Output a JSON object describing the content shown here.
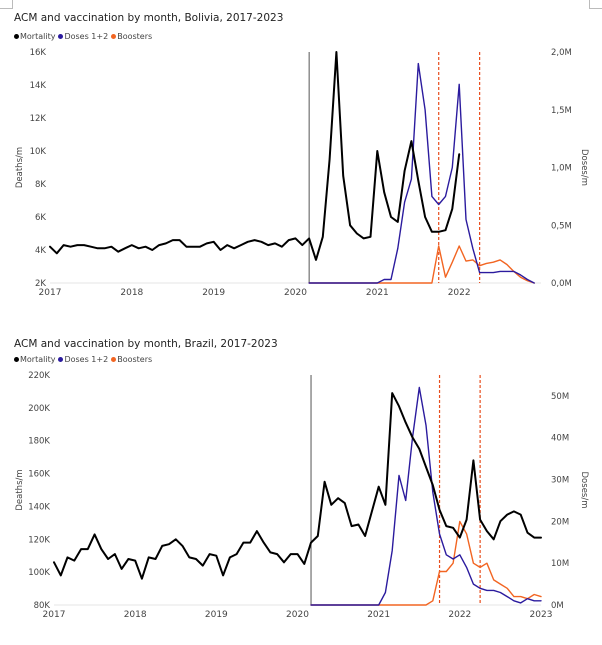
{
  "chart_data": [
    {
      "type": "line",
      "title": "ACM and vaccination by month, Bolivia, 2017-2023",
      "ylabel": "Deaths/m",
      "y2label": "Doses/m",
      "ylim": [
        2000,
        16000
      ],
      "y2lim": [
        0,
        2000000
      ],
      "xlim": [
        "2017-01",
        "2023-01"
      ],
      "yticks": [
        2000,
        4000,
        6000,
        8000,
        10000,
        12000,
        14000,
        16000
      ],
      "ytick_labels": [
        "2K",
        "4K",
        "6K",
        "8K",
        "10K",
        "12K",
        "14K",
        "16K"
      ],
      "y2ticks": [
        0,
        500000,
        1000000,
        1500000,
        2000000
      ],
      "y2tick_labels": [
        "0,0M",
        "0,5M",
        "1,0M",
        "1,5M",
        "2,0M"
      ],
      "xticks": [
        "2017-01",
        "2018-01",
        "2019-01",
        "2020-01",
        "2021-01",
        "2022-01"
      ],
      "xtick_labels": [
        "2017",
        "2018",
        "2019",
        "2020",
        "2021",
        "2022"
      ],
      "legend": [
        "Mortality",
        "Doses 1+2",
        "Boosters"
      ],
      "legend_position": "top-left",
      "colors": {
        "mortality": "#000000",
        "doses": "#2b1b9e",
        "boosters": "#f26522",
        "marker": "#555555",
        "vline": "#e84d1c"
      },
      "marker_line": "2020-03",
      "boosters_start_line": "2021-10",
      "boosters_peak_line": "2022-04",
      "series": [
        {
          "name": "Mortality",
          "axis": "left",
          "x": [
            "2017-01",
            "2017-02",
            "2017-03",
            "2017-04",
            "2017-05",
            "2017-06",
            "2017-07",
            "2017-08",
            "2017-09",
            "2017-10",
            "2017-11",
            "2017-12",
            "2018-01",
            "2018-02",
            "2018-03",
            "2018-04",
            "2018-05",
            "2018-06",
            "2018-07",
            "2018-08",
            "2018-09",
            "2018-10",
            "2018-11",
            "2018-12",
            "2019-01",
            "2019-02",
            "2019-03",
            "2019-04",
            "2019-05",
            "2019-06",
            "2019-07",
            "2019-08",
            "2019-09",
            "2019-10",
            "2019-11",
            "2019-12",
            "2020-01",
            "2020-02",
            "2020-03",
            "2020-04",
            "2020-05",
            "2020-06",
            "2020-07",
            "2020-08",
            "2020-09",
            "2020-10",
            "2020-11",
            "2020-12",
            "2021-01",
            "2021-02",
            "2021-03",
            "2021-04",
            "2021-05",
            "2021-06",
            "2021-07",
            "2021-08",
            "2021-09",
            "2021-10",
            "2021-11",
            "2021-12",
            "2022-01"
          ],
          "y": [
            4200,
            3800,
            4300,
            4200,
            4300,
            4300,
            4200,
            4100,
            4100,
            4200,
            3900,
            4100,
            4300,
            4100,
            4200,
            4000,
            4300,
            4400,
            4600,
            4600,
            4200,
            4200,
            4200,
            4400,
            4500,
            4000,
            4300,
            4100,
            4300,
            4500,
            4600,
            4500,
            4300,
            4400,
            4200,
            4600,
            4700,
            4300,
            4700,
            3400,
            4800,
            9500,
            16000,
            8500,
            5500,
            5000,
            4700,
            4800,
            10000,
            7500,
            6000,
            5700,
            8800,
            10600,
            8200,
            6000,
            5100,
            5100,
            5200,
            6500,
            9800
          ]
        },
        {
          "name": "Doses 1+2",
          "axis": "right",
          "x": [
            "2020-03",
            "2020-04",
            "2020-05",
            "2020-06",
            "2020-07",
            "2020-08",
            "2020-09",
            "2020-10",
            "2020-11",
            "2020-12",
            "2021-01",
            "2021-02",
            "2021-03",
            "2021-04",
            "2021-05",
            "2021-06",
            "2021-07",
            "2021-08",
            "2021-09",
            "2021-10",
            "2021-11",
            "2021-12",
            "2022-01",
            "2022-02",
            "2022-03",
            "2022-04",
            "2022-05",
            "2022-06",
            "2022-07",
            "2022-08",
            "2022-09",
            "2022-10",
            "2022-11",
            "2022-12"
          ],
          "y": [
            0,
            0,
            0,
            0,
            0,
            0,
            0,
            0,
            0,
            0,
            0,
            30000,
            30000,
            300000,
            700000,
            900000,
            1900000,
            1500000,
            750000,
            680000,
            750000,
            1000000,
            1720000,
            550000,
            300000,
            90000,
            90000,
            90000,
            100000,
            100000,
            100000,
            70000,
            30000,
            0
          ]
        },
        {
          "name": "Boosters",
          "axis": "right",
          "x": [
            "2020-03",
            "2020-04",
            "2020-05",
            "2020-06",
            "2020-07",
            "2020-08",
            "2020-09",
            "2020-10",
            "2020-11",
            "2020-12",
            "2021-01",
            "2021-02",
            "2021-03",
            "2021-04",
            "2021-05",
            "2021-06",
            "2021-07",
            "2021-08",
            "2021-09",
            "2021-10",
            "2021-11",
            "2021-12",
            "2022-01",
            "2022-02",
            "2022-03",
            "2022-04",
            "2022-05",
            "2022-06",
            "2022-07",
            "2022-08",
            "2022-09",
            "2022-10",
            "2022-11",
            "2022-12"
          ],
          "y": [
            0,
            0,
            0,
            0,
            0,
            0,
            0,
            0,
            0,
            0,
            0,
            0,
            0,
            0,
            0,
            0,
            0,
            0,
            0,
            320000,
            50000,
            180000,
            320000,
            190000,
            200000,
            150000,
            170000,
            180000,
            200000,
            160000,
            100000,
            50000,
            20000,
            0
          ]
        }
      ]
    },
    {
      "type": "line",
      "title": "ACM and vaccination by month, Brazil, 2017-2023",
      "ylabel": "Deaths/m",
      "y2label": "Doses/m",
      "ylim": [
        80000,
        220000
      ],
      "y2lim": [
        0,
        55000000
      ],
      "xlim": [
        "2017-01",
        "2023-01"
      ],
      "yticks": [
        80000,
        100000,
        120000,
        140000,
        160000,
        180000,
        200000,
        220000
      ],
      "ytick_labels": [
        "80K",
        "100K",
        "120K",
        "140K",
        "160K",
        "180K",
        "200K",
        "220K"
      ],
      "y2ticks": [
        0,
        10000000,
        20000000,
        30000000,
        40000000,
        50000000
      ],
      "y2tick_labels": [
        "0M",
        "10M",
        "20M",
        "30M",
        "40M",
        "50M"
      ],
      "xticks": [
        "2017-01",
        "2018-01",
        "2019-01",
        "2020-01",
        "2021-01",
        "2022-01",
        "2023-01"
      ],
      "xtick_labels": [
        "2017",
        "2018",
        "2019",
        "2020",
        "2021",
        "2022",
        "2023"
      ],
      "legend": [
        "Mortality",
        "Doses 1+2",
        "Boosters"
      ],
      "legend_position": "top-left",
      "colors": {
        "mortality": "#000000",
        "doses": "#2b1b9e",
        "boosters": "#f26522",
        "marker": "#555555",
        "vline": "#e84d1c"
      },
      "marker_line": "2020-03",
      "boosters_start_line": "2021-10",
      "boosters_peak_line": "2022-04",
      "series": [
        {
          "name": "Mortality",
          "axis": "left",
          "x": [
            "2017-01",
            "2017-02",
            "2017-03",
            "2017-04",
            "2017-05",
            "2017-06",
            "2017-07",
            "2017-08",
            "2017-09",
            "2017-10",
            "2017-11",
            "2017-12",
            "2018-01",
            "2018-02",
            "2018-03",
            "2018-04",
            "2018-05",
            "2018-06",
            "2018-07",
            "2018-08",
            "2018-09",
            "2018-10",
            "2018-11",
            "2018-12",
            "2019-01",
            "2019-02",
            "2019-03",
            "2019-04",
            "2019-05",
            "2019-06",
            "2019-07",
            "2019-08",
            "2019-09",
            "2019-10",
            "2019-11",
            "2019-12",
            "2020-01",
            "2020-02",
            "2020-03",
            "2020-04",
            "2020-05",
            "2020-06",
            "2020-07",
            "2020-08",
            "2020-09",
            "2020-10",
            "2020-11",
            "2020-12",
            "2021-01",
            "2021-02",
            "2021-03",
            "2021-04",
            "2021-05",
            "2021-06",
            "2021-07",
            "2021-08",
            "2021-09",
            "2021-10",
            "2021-11",
            "2021-12",
            "2022-01",
            "2022-02",
            "2022-03",
            "2022-04",
            "2022-05",
            "2022-06",
            "2022-07",
            "2022-08",
            "2022-09",
            "2022-10",
            "2022-11",
            "2022-12",
            "2023-01"
          ],
          "y": [
            106000,
            98000,
            109000,
            107000,
            114000,
            114000,
            123000,
            114000,
            108000,
            111000,
            102000,
            108000,
            107000,
            96000,
            109000,
            108000,
            116000,
            117000,
            120000,
            116000,
            109000,
            108000,
            104000,
            111000,
            110000,
            98000,
            109000,
            111000,
            118000,
            118000,
            125000,
            118000,
            112000,
            111000,
            106000,
            111000,
            111000,
            105000,
            118000,
            122000,
            155000,
            141000,
            145000,
            142000,
            128000,
            129000,
            122000,
            137000,
            152000,
            141000,
            209000,
            201000,
            191000,
            182000,
            175000,
            164000,
            153000,
            138000,
            128000,
            127000,
            121000,
            132000,
            168000,
            132000,
            125000,
            120000,
            131000,
            135000,
            137000,
            135000,
            124000,
            121000,
            121000
          ]
        },
        {
          "name": "Doses 1+2",
          "axis": "right",
          "x": [
            "2020-03",
            "2020-04",
            "2020-05",
            "2020-06",
            "2020-07",
            "2020-08",
            "2020-09",
            "2020-10",
            "2020-11",
            "2020-12",
            "2021-01",
            "2021-02",
            "2021-03",
            "2021-04",
            "2021-05",
            "2021-06",
            "2021-07",
            "2021-08",
            "2021-09",
            "2021-10",
            "2021-11",
            "2021-12",
            "2022-01",
            "2022-02",
            "2022-03",
            "2022-04",
            "2022-05",
            "2022-06",
            "2022-07",
            "2022-08",
            "2022-09",
            "2022-10",
            "2022-11",
            "2022-12",
            "2023-01"
          ],
          "y": [
            0,
            0,
            0,
            0,
            0,
            0,
            0,
            0,
            0,
            0,
            0,
            3000000,
            13000000,
            31000000,
            25000000,
            40000000,
            52000000,
            43000000,
            27000000,
            17000000,
            12000000,
            11000000,
            12000000,
            9000000,
            5000000,
            4000000,
            3500000,
            3500000,
            3000000,
            2000000,
            1000000,
            500000,
            1500000,
            1000000,
            1000000
          ]
        },
        {
          "name": "Boosters",
          "axis": "right",
          "x": [
            "2020-03",
            "2020-04",
            "2020-05",
            "2020-06",
            "2020-07",
            "2020-08",
            "2020-09",
            "2020-10",
            "2020-11",
            "2020-12",
            "2021-01",
            "2021-02",
            "2021-03",
            "2021-04",
            "2021-05",
            "2021-06",
            "2021-07",
            "2021-08",
            "2021-09",
            "2021-10",
            "2021-11",
            "2021-12",
            "2022-01",
            "2022-02",
            "2022-03",
            "2022-04",
            "2022-05",
            "2022-06",
            "2022-07",
            "2022-08",
            "2022-09",
            "2022-10",
            "2022-11",
            "2022-12",
            "2023-01"
          ],
          "y": [
            0,
            0,
            0,
            0,
            0,
            0,
            0,
            0,
            0,
            0,
            0,
            0,
            0,
            0,
            0,
            0,
            0,
            0,
            1000000,
            8000000,
            8000000,
            10000000,
            20000000,
            17000000,
            10000000,
            9000000,
            10000000,
            6000000,
            5000000,
            4000000,
            2000000,
            2000000,
            1500000,
            2500000,
            2000000
          ]
        }
      ]
    }
  ]
}
